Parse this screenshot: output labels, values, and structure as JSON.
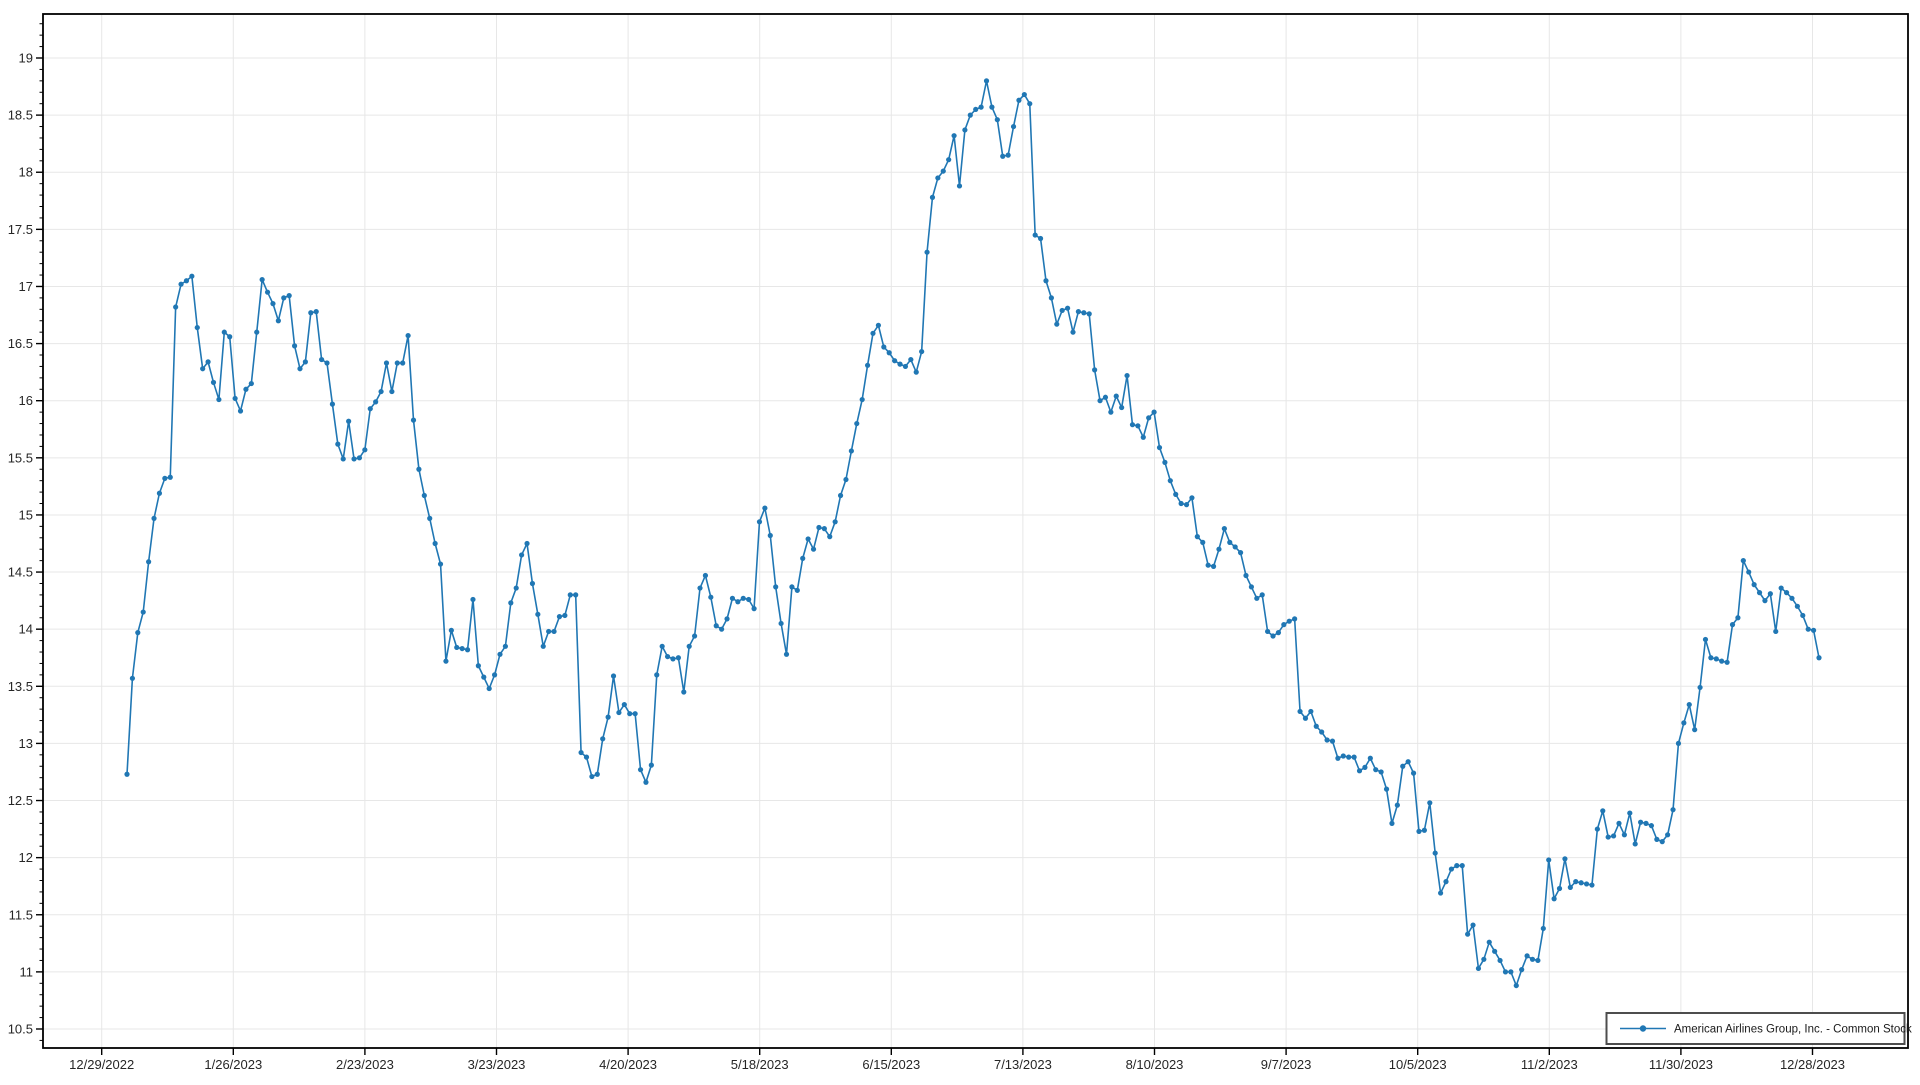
{
  "legend": {
    "label": "American Airlines Group, Inc. - Common Stock"
  },
  "chart_data": {
    "type": "line",
    "title": "",
    "xlabel": "",
    "ylabel": "",
    "grid": true,
    "legend_position": "bottom-right",
    "x_tick_labels": [
      "12/29/2022",
      "1/26/2023",
      "2/23/2023",
      "3/23/2023",
      "4/20/2023",
      "5/18/2023",
      "6/15/2023",
      "7/13/2023",
      "8/10/2023",
      "9/7/2023",
      "10/5/2023",
      "11/2/2023",
      "11/30/2023",
      "12/28/2023"
    ],
    "y_tick_labels": [
      "10.5",
      "11",
      "11.5",
      "12",
      "12.5",
      "13",
      "13.5",
      "14",
      "14.5",
      "15",
      "15.5",
      "16",
      "16.5",
      "17",
      "17.5",
      "18",
      "18.5",
      "19"
    ],
    "y_axis": {
      "min": 10.5,
      "max": 19,
      "major_step": 0.5,
      "minor_step": 0.1
    },
    "colors": {
      "line": "#2077b4",
      "grid": "#e7e7e7",
      "axis": "#000000",
      "tick_label": "#262626",
      "legend_border": "#4d4d4d",
      "legend_text": "#1a1a1a",
      "background": "#ffffff"
    },
    "series": [
      {
        "name": "American Airlines Group, Inc. - Common Stock",
        "values": [
          12.73,
          13.57,
          13.97,
          14.15,
          14.59,
          14.97,
          15.19,
          15.32,
          15.33,
          16.82,
          17.02,
          17.05,
          17.09,
          16.64,
          16.28,
          16.34,
          16.16,
          16.01,
          16.6,
          16.56,
          16.02,
          15.91,
          16.1,
          16.15,
          16.6,
          17.06,
          16.95,
          16.85,
          16.7,
          16.9,
          16.92,
          16.48,
          16.28,
          16.34,
          16.77,
          16.78,
          16.36,
          16.33,
          15.97,
          15.62,
          15.49,
          15.82,
          15.49,
          15.5,
          15.57,
          15.93,
          15.99,
          16.08,
          16.33,
          16.08,
          16.33,
          16.33,
          16.57,
          15.83,
          15.4,
          15.17,
          14.97,
          14.75,
          14.57,
          13.72,
          13.99,
          13.84,
          13.83,
          13.82,
          14.26,
          13.68,
          13.58,
          13.48,
          13.6,
          13.78,
          13.85,
          14.23,
          14.36,
          14.65,
          14.75,
          14.4,
          14.13,
          13.85,
          13.98,
          13.98,
          14.11,
          14.12,
          14.3,
          14.3,
          12.92,
          12.88,
          12.71,
          12.73,
          13.04,
          13.23,
          13.59,
          13.27,
          13.34,
          13.26,
          13.26,
          12.77,
          12.66,
          12.81,
          13.6,
          13.85,
          13.76,
          13.74,
          13.75,
          13.45,
          13.85,
          13.94,
          14.36,
          14.47,
          14.28,
          14.03,
          14.0,
          14.09,
          14.27,
          14.24,
          14.27,
          14.26,
          14.18,
          14.94,
          15.06,
          14.82,
          14.37,
          14.05,
          13.78,
          14.37,
          14.34,
          14.62,
          14.79,
          14.7,
          14.89,
          14.88,
          14.81,
          14.94,
          15.17,
          15.31,
          15.56,
          15.8,
          16.01,
          16.31,
          16.59,
          16.66,
          16.47,
          16.42,
          16.35,
          16.32,
          16.3,
          16.36,
          16.25,
          16.43,
          17.3,
          17.78,
          17.95,
          18.01,
          18.11,
          18.32,
          17.88,
          18.37,
          18.5,
          18.55,
          18.57,
          18.8,
          18.57,
          18.46,
          18.14,
          18.15,
          18.4,
          18.63,
          18.68,
          18.6,
          17.45,
          17.42,
          17.05,
          16.9,
          16.67,
          16.79,
          16.81,
          16.6,
          16.78,
          16.77,
          16.76,
          16.27,
          16.0,
          16.03,
          15.9,
          16.04,
          15.94,
          16.22,
          15.79,
          15.78,
          15.68,
          15.85,
          15.9,
          15.59,
          15.46,
          15.3,
          15.18,
          15.1,
          15.09,
          15.15,
          14.81,
          14.76,
          14.56,
          14.55,
          14.7,
          14.88,
          14.76,
          14.72,
          14.67,
          14.47,
          14.37,
          14.27,
          14.3,
          13.98,
          13.94,
          13.97,
          14.04,
          14.07,
          14.09,
          13.28,
          13.22,
          13.28,
          13.15,
          13.1,
          13.03,
          13.02,
          12.87,
          12.89,
          12.88,
          12.88,
          12.76,
          12.79,
          12.87,
          12.77,
          12.75,
          12.6,
          12.3,
          12.46,
          12.8,
          12.84,
          12.74,
          12.23,
          12.24,
          12.48,
          12.04,
          11.69,
          11.79,
          11.9,
          11.93,
          11.93,
          11.33,
          11.41,
          11.03,
          11.11,
          11.26,
          11.18,
          11.1,
          11.0,
          11.0,
          10.88,
          11.02,
          11.14,
          11.11,
          11.1,
          11.38,
          11.98,
          11.64,
          11.73,
          11.99,
          11.74,
          11.79,
          11.78,
          11.77,
          11.76,
          12.25,
          12.41,
          12.18,
          12.19,
          12.3,
          12.2,
          12.39,
          12.12,
          12.31,
          12.3,
          12.28,
          12.16,
          12.14,
          12.2,
          12.42,
          13.0,
          13.18,
          13.34,
          13.12,
          13.49,
          13.91,
          13.75,
          13.74,
          13.72,
          13.71,
          14.04,
          14.1,
          14.6,
          14.5,
          14.39,
          14.32,
          14.25,
          14.31,
          13.98,
          14.36,
          14.32,
          14.27,
          14.2,
          14.12,
          14.0,
          13.99,
          13.75
        ]
      }
    ]
  }
}
